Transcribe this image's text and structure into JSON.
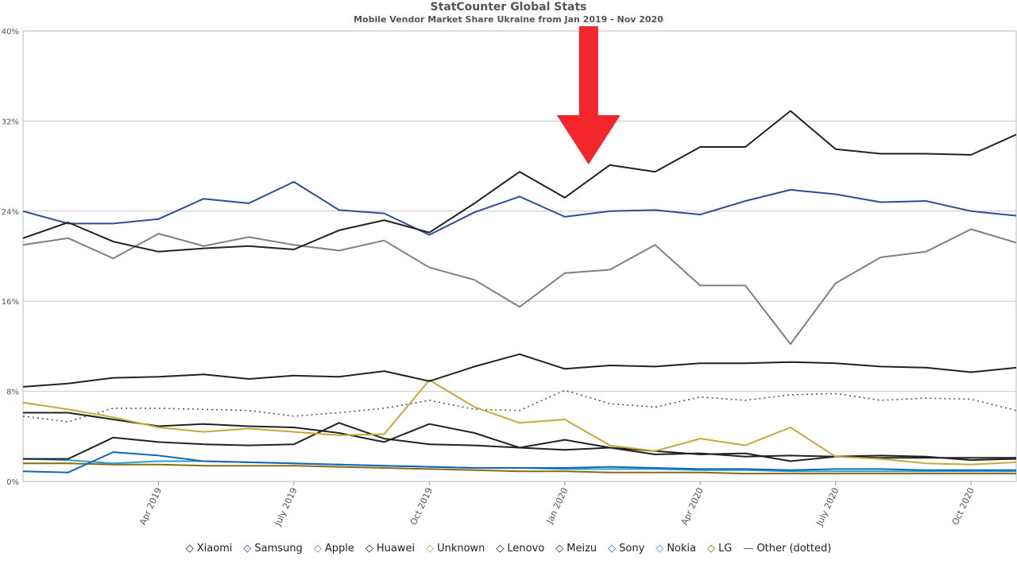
{
  "chart_data": {
    "type": "line",
    "title": "StatCounter Global Stats",
    "subtitle": "Mobile Vendor Market Share Ukraine from Jan 2019 - Nov 2020",
    "y_tick_labels": [
      "0%",
      "8%",
      "16%",
      "24%",
      "32%",
      "40%"
    ],
    "ylim": [
      0,
      40
    ],
    "x": [
      "Jan 2019",
      "Feb 2019",
      "Mar 2019",
      "Apr 2019",
      "May 2019",
      "Jun 2019",
      "Jul 2019",
      "Aug 2019",
      "Sep 2019",
      "Oct 2019",
      "Nov 2019",
      "Dec 2019",
      "Jan 2020",
      "Feb 2020",
      "Mar 2020",
      "Apr 2020",
      "May 2020",
      "Jun 2020",
      "Jul 2020",
      "Aug 2020",
      "Sep 2020",
      "Oct 2020",
      "Nov 2020"
    ],
    "x_tick_labels": [
      {
        "label": "Apr 2019",
        "index": 3
      },
      {
        "label": "July 2019",
        "index": 6
      },
      {
        "label": "Oct 2019",
        "index": 9
      },
      {
        "label": "Jan 2020",
        "index": 12
      },
      {
        "label": "Apr 2020",
        "index": 15
      },
      {
        "label": "July 2020",
        "index": 18
      },
      {
        "label": "Oct 2020",
        "index": 21
      }
    ],
    "grid": true,
    "legend_position": "bottom",
    "annotation": {
      "type": "red-arrow",
      "pointing_down_at": "Feb 2020"
    },
    "series": [
      {
        "name": "Xiaomi",
        "color": "#222222",
        "style": "solid",
        "values": [
          21.6,
          23.0,
          21.3,
          20.4,
          20.7,
          20.9,
          20.6,
          22.3,
          23.2,
          22.1,
          24.7,
          27.5,
          25.2,
          28.1,
          27.5,
          29.7,
          29.7,
          32.9,
          29.5,
          29.1,
          29.1,
          29.0,
          30.8
        ]
      },
      {
        "name": "Samsung",
        "color": "#2f4b9b",
        "style": "solid",
        "values": [
          24.0,
          22.9,
          22.9,
          23.3,
          25.1,
          24.7,
          26.6,
          24.1,
          23.8,
          21.9,
          23.9,
          25.3,
          23.5,
          24.0,
          24.1,
          23.7,
          24.9,
          25.9,
          25.5,
          24.8,
          24.9,
          24.0,
          23.6
        ]
      },
      {
        "name": "Apple",
        "color": "#808080",
        "style": "solid",
        "values": [
          21.0,
          21.6,
          19.8,
          22.0,
          20.9,
          21.7,
          21.0,
          20.5,
          21.4,
          19.0,
          17.9,
          15.5,
          18.5,
          18.8,
          21.0,
          17.4,
          17.4,
          12.2,
          17.6,
          19.9,
          20.4,
          22.4,
          21.2
        ]
      },
      {
        "name": "Huawei",
        "color": "#222222",
        "style": "solid",
        "values": [
          8.4,
          8.7,
          9.2,
          9.3,
          9.5,
          9.1,
          9.4,
          9.3,
          9.8,
          8.9,
          10.2,
          11.3,
          10.0,
          10.3,
          10.2,
          10.5,
          10.5,
          10.6,
          10.5,
          10.2,
          10.1,
          9.7,
          10.1
        ]
      },
      {
        "name": "Unknown",
        "color": "#c8a83a",
        "style": "solid",
        "values": [
          7.0,
          6.4,
          5.7,
          4.8,
          4.4,
          4.7,
          4.4,
          4.1,
          4.2,
          9.0,
          6.6,
          5.2,
          5.5,
          3.2,
          2.7,
          3.8,
          3.2,
          4.8,
          2.2,
          2.0,
          1.6,
          1.5,
          1.7
        ]
      },
      {
        "name": "Lenovo",
        "color": "#222222",
        "style": "solid",
        "values": [
          6.1,
          6.1,
          5.5,
          4.9,
          5.1,
          4.9,
          4.8,
          4.3,
          3.5,
          5.1,
          4.3,
          3.0,
          3.7,
          3.0,
          2.7,
          2.4,
          2.5,
          1.8,
          2.2,
          2.3,
          2.2,
          1.9,
          2.0
        ]
      },
      {
        "name": "Meizu",
        "color": "#222222",
        "style": "solid",
        "values": [
          2.0,
          2.0,
          3.9,
          3.5,
          3.3,
          3.2,
          3.3,
          5.2,
          3.8,
          3.3,
          3.2,
          3.0,
          2.8,
          3.0,
          2.4,
          2.5,
          2.2,
          2.3,
          2.2,
          2.1,
          2.1,
          2.1,
          2.1
        ]
      },
      {
        "name": "Sony",
        "color": "#1565c0",
        "style": "solid",
        "values": [
          0.9,
          0.8,
          2.6,
          2.3,
          1.8,
          1.7,
          1.6,
          1.5,
          1.4,
          1.3,
          1.2,
          1.2,
          1.2,
          1.3,
          1.2,
          1.1,
          1.1,
          1.0,
          1.1,
          1.1,
          1.0,
          1.0,
          1.0
        ]
      },
      {
        "name": "Nokia",
        "color": "#29a3c9",
        "style": "solid",
        "values": [
          2.0,
          1.9,
          1.6,
          1.8,
          1.8,
          1.7,
          1.6,
          1.5,
          1.4,
          1.3,
          1.2,
          1.2,
          1.1,
          1.1,
          1.1,
          1.0,
          1.0,
          0.9,
          0.9,
          0.9,
          0.9,
          0.9,
          0.9
        ]
      },
      {
        "name": "LG",
        "color": "#8b6b12",
        "style": "solid",
        "values": [
          1.6,
          1.6,
          1.5,
          1.5,
          1.4,
          1.4,
          1.4,
          1.3,
          1.2,
          1.1,
          1.0,
          0.9,
          0.9,
          0.8,
          0.8,
          0.8,
          0.7,
          0.7,
          0.7,
          0.7,
          0.7,
          0.7,
          0.7
        ]
      },
      {
        "name": "Other (dotted)",
        "color": "#555555",
        "style": "dotted",
        "values": [
          5.8,
          5.3,
          6.5,
          6.5,
          6.4,
          6.3,
          5.8,
          6.1,
          6.5,
          7.2,
          6.4,
          6.3,
          8.1,
          6.9,
          6.6,
          7.5,
          7.2,
          7.7,
          7.8,
          7.2,
          7.4,
          7.3,
          6.3
        ]
      }
    ]
  }
}
